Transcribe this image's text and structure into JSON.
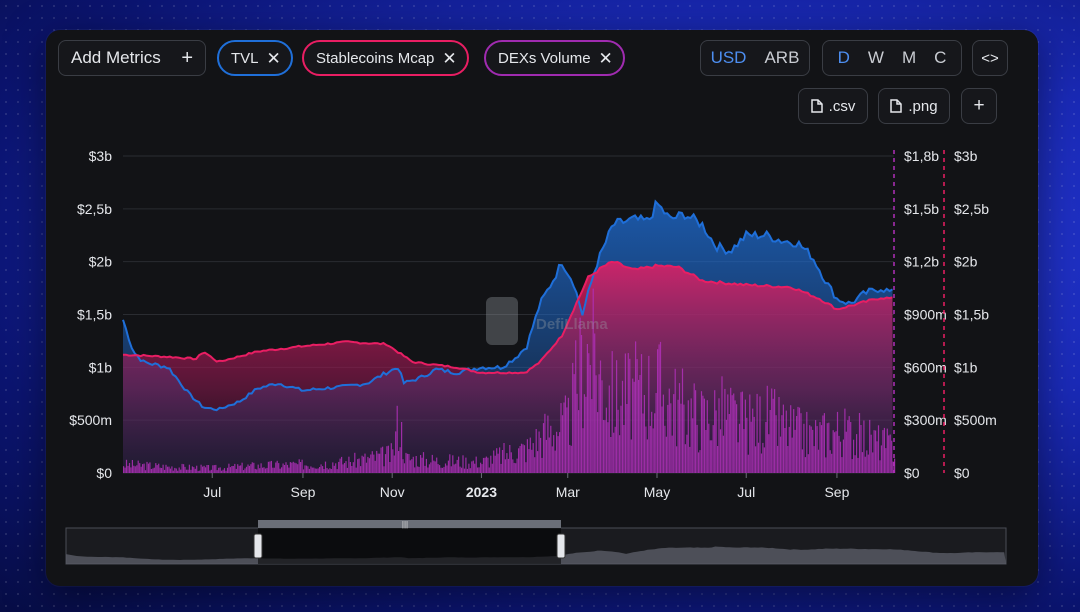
{
  "toolbar": {
    "add_metrics_label": "Add Metrics",
    "add_icon": "plus-icon",
    "metrics": [
      {
        "label": "TVL",
        "color": "#1f6fd9"
      },
      {
        "label": "Stablecoins Mcap",
        "color": "#e91e63"
      },
      {
        "label": "DEXs Volume",
        "color": "#a02bb0"
      }
    ],
    "remove_icon": "x-icon",
    "currency": [
      "USD",
      "ARB"
    ],
    "currency_selected": "USD",
    "periods": [
      "D",
      "W",
      "M",
      "C"
    ],
    "period_selected": "D",
    "embed_label": "<>",
    "csv_label": ".csv",
    "png_label": ".png",
    "more_label": "+"
  },
  "watermark": "DefiLlama",
  "colors": {
    "tvl": "#1f6fd9",
    "stable": "#e91e63",
    "dex": "#b030b8",
    "accent": "#4d8ef0"
  },
  "chart_data": {
    "type": "area",
    "x_ticks": [
      "Jul",
      "Sep",
      "Nov",
      "2023",
      "Mar",
      "May",
      "Jul",
      "Sep"
    ],
    "left_axis": {
      "ticks": [
        "$3b",
        "$2,5b",
        "$2b",
        "$1,5b",
        "$1b",
        "$500m",
        "$0"
      ],
      "range": [
        0,
        3000000000
      ]
    },
    "right_axis_1": {
      "ticks": [
        "$1,8b",
        "$1,5b",
        "$1,2b",
        "$900m",
        "$600m",
        "$300m",
        "$0"
      ],
      "range": [
        0,
        1800000000
      ]
    },
    "right_axis_2": {
      "ticks": [
        "$3b",
        "$2,5b",
        "$2b",
        "$1,5b",
        "$1b",
        "$500m",
        "$0"
      ],
      "range": [
        0,
        3000000000
      ]
    },
    "series": [
      {
        "name": "TVL",
        "x": [
          "2022-05-01",
          "2022-05-08",
          "2022-05-15",
          "2022-06-01",
          "2022-06-15",
          "2022-06-25",
          "2022-07-05",
          "2022-07-20",
          "2022-08-01",
          "2022-08-15",
          "2022-09-01",
          "2022-09-15",
          "2022-10-01",
          "2022-10-15",
          "2022-10-28",
          "2022-11-05",
          "2022-11-09",
          "2022-11-20",
          "2022-12-01",
          "2022-12-15",
          "2022-12-31",
          "2023-01-15",
          "2023-01-25",
          "2023-02-01",
          "2023-02-10",
          "2023-02-20",
          "2023-02-25",
          "2023-03-05",
          "2023-03-11",
          "2023-03-20",
          "2023-04-01",
          "2023-04-15",
          "2023-04-25",
          "2023-05-01",
          "2023-05-10",
          "2023-05-20",
          "2023-06-01",
          "2023-06-10",
          "2023-06-20",
          "2023-07-01",
          "2023-07-15",
          "2023-07-25",
          "2023-08-05",
          "2023-08-15",
          "2023-08-25",
          "2023-09-01",
          "2023-09-10",
          "2023-09-20",
          "2023-10-01",
          "2023-10-10"
        ],
        "values": [
          1450000000,
          1150000000,
          1050000000,
          1000000000,
          750000000,
          620000000,
          600000000,
          680000000,
          800000000,
          850000000,
          780000000,
          800000000,
          820000000,
          850000000,
          950000000,
          1000000000,
          850000000,
          900000000,
          980000000,
          950000000,
          1000000000,
          1000000000,
          1100000000,
          1200000000,
          1600000000,
          1850000000,
          2000000000,
          1800000000,
          1500000000,
          1950000000,
          2350000000,
          2400000000,
          2380000000,
          2550000000,
          2400000000,
          2450000000,
          2350000000,
          2150000000,
          2100000000,
          2250000000,
          2250000000,
          2200000000,
          2180000000,
          2050000000,
          1800000000,
          1650000000,
          1600000000,
          1700000000,
          1750000000,
          1700000000
        ]
      },
      {
        "name": "Stablecoins Mcap",
        "x": [
          "2022-05-01",
          "2022-06-01",
          "2022-06-20",
          "2022-06-25",
          "2022-07-05",
          "2022-08-01",
          "2022-09-01",
          "2022-10-01",
          "2022-10-28",
          "2022-11-15",
          "2022-12-15",
          "2022-12-31",
          "2023-01-31",
          "2023-02-10",
          "2023-02-25",
          "2023-03-05",
          "2023-03-15",
          "2023-03-25",
          "2023-04-01",
          "2023-04-15",
          "2023-05-01",
          "2023-05-15",
          "2023-06-01",
          "2023-06-15",
          "2023-07-01",
          "2023-07-15",
          "2023-08-01",
          "2023-08-20",
          "2023-09-01",
          "2023-09-15",
          "2023-10-01",
          "2023-10-10"
        ],
        "values": [
          1120000000,
          1100000000,
          1080000000,
          1150000000,
          1050000000,
          1150000000,
          1200000000,
          1240000000,
          1220000000,
          1050000000,
          1000000000,
          950000000,
          950000000,
          1050000000,
          1300000000,
          1550000000,
          1850000000,
          1950000000,
          2000000000,
          1920000000,
          1960000000,
          1950000000,
          1820000000,
          1800000000,
          1780000000,
          1770000000,
          1760000000,
          1650000000,
          1550000000,
          1600000000,
          1660000000,
          1650000000
        ]
      },
      {
        "name": "DEXs Volume",
        "x": [
          "2022-05-01",
          "2022-06-01",
          "2022-07-01",
          "2022-08-01",
          "2022-09-01",
          "2022-10-01",
          "2022-11-01",
          "2022-11-05",
          "2022-11-10",
          "2022-12-01",
          "2023-01-01",
          "2023-01-15",
          "2023-02-01",
          "2023-02-15",
          "2023-03-01",
          "2023-03-10",
          "2023-03-15",
          "2023-03-25",
          "2023-04-01",
          "2023-04-15",
          "2023-05-01",
          "2023-05-15",
          "2023-06-01",
          "2023-06-15",
          "2023-07-01",
          "2023-07-15",
          "2023-08-01",
          "2023-08-15",
          "2023-09-01",
          "2023-09-15",
          "2023-10-01",
          "2023-10-10"
        ],
        "values": [
          70000000,
          50000000,
          40000000,
          60000000,
          70000000,
          90000000,
          150000000,
          450000000,
          120000000,
          100000000,
          90000000,
          150000000,
          200000000,
          350000000,
          400000000,
          900000000,
          1000000000,
          750000000,
          600000000,
          650000000,
          700000000,
          550000000,
          450000000,
          500000000,
          400000000,
          450000000,
          350000000,
          300000000,
          350000000,
          300000000,
          250000000,
          200000000
        ]
      }
    ]
  }
}
